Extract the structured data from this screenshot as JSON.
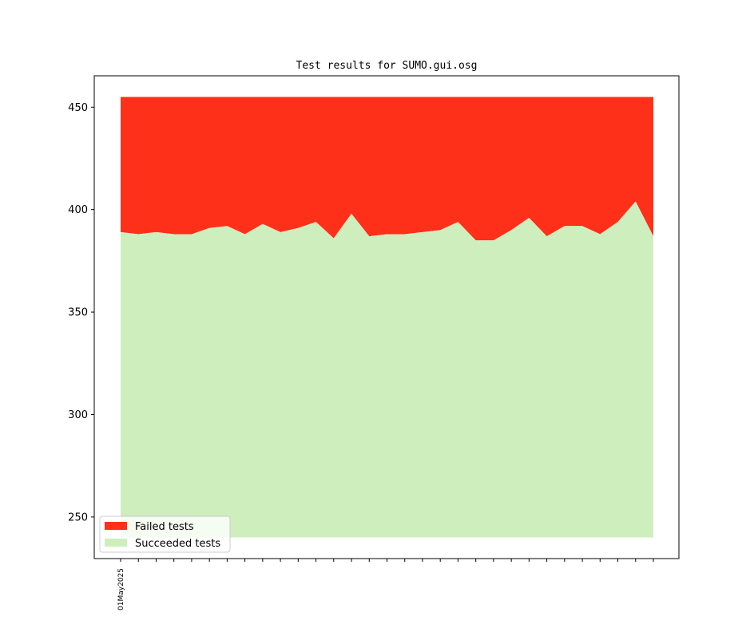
{
  "chart_data": {
    "type": "area",
    "title": "Test results for SUMO.gui.osg",
    "xlabel": "",
    "ylabel": "",
    "ylim": [
      229.7,
      465.3
    ],
    "y_ticks": [
      250,
      300,
      350,
      400,
      450
    ],
    "x_tick_labels": [
      "01May2025"
    ],
    "baseline": 240,
    "total": 455,
    "succeeded": [
      389,
      388,
      389,
      388,
      388,
      391,
      392,
      388,
      393,
      389,
      391,
      394,
      386,
      398,
      387,
      388,
      388,
      389,
      390,
      394,
      385,
      385,
      390,
      396,
      387,
      392,
      392,
      388,
      394,
      404,
      387
    ],
    "legend_position": "lower left",
    "series": [
      {
        "name": "Failed tests",
        "color": "#ff3019"
      },
      {
        "name": "Succeeded tests",
        "color": "#ceeebe"
      }
    ]
  }
}
